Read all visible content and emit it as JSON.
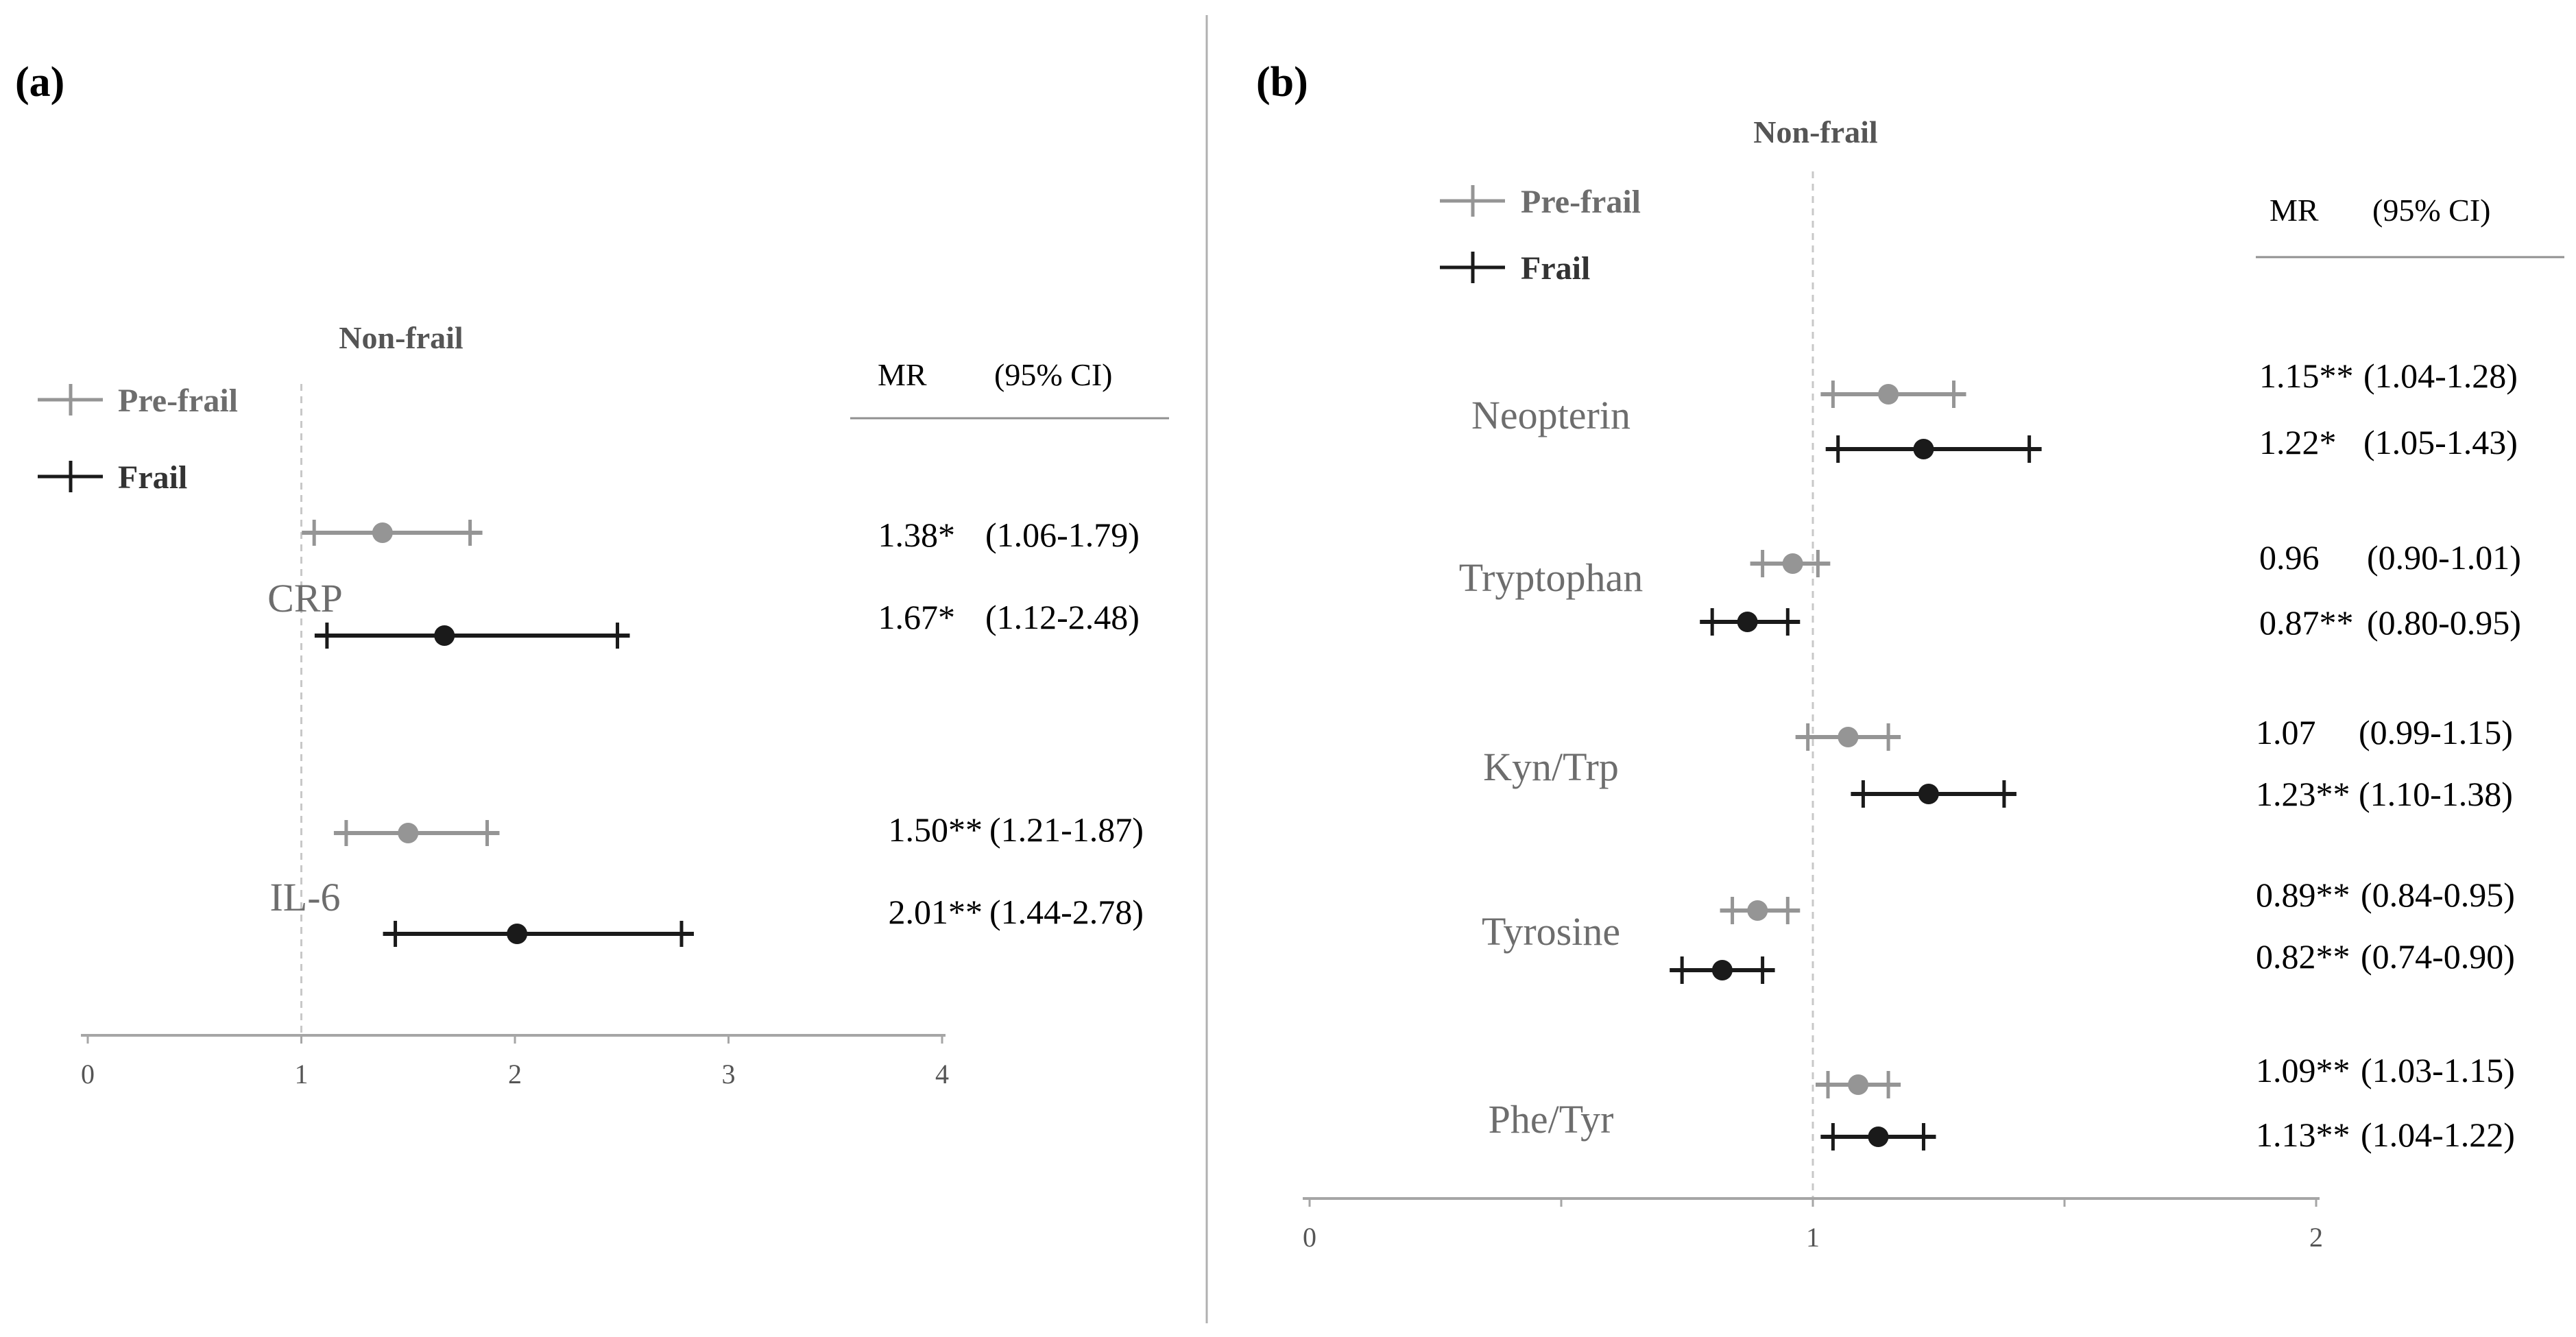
{
  "colors": {
    "prefrail": "#959595",
    "frail": "#1a1a1a",
    "ref_line": "#c8c8c8",
    "axis": "#a6a6a6",
    "divider": "#b0b0b0",
    "label_gray": "#6d6d6d"
  },
  "chart_data": [
    {
      "type": "forest",
      "panel": "(a)",
      "title": "Non-frail",
      "reference": 1,
      "xlim": [
        0,
        4
      ],
      "xticks": [
        "0",
        "1",
        "2",
        "3",
        "4"
      ],
      "header": {
        "mr": "MR",
        "ci": "(95% CI)"
      },
      "legend": [
        {
          "name": "Pre-frail",
          "key": "prefrail"
        },
        {
          "name": "Frail",
          "key": "frail"
        }
      ],
      "categories": [
        {
          "name": "CRP",
          "series": [
            {
              "group": "Pre-frail",
              "mr": 1.38,
              "lo": 1.06,
              "hi": 1.79,
              "mr_text": "1.38*",
              "ci_text": "(1.06-1.79)"
            },
            {
              "group": "Frail",
              "mr": 1.67,
              "lo": 1.12,
              "hi": 2.48,
              "mr_text": "1.67*",
              "ci_text": "(1.12-2.48)"
            }
          ]
        },
        {
          "name": "IL-6",
          "series": [
            {
              "group": "Pre-frail",
              "mr": 1.5,
              "lo": 1.21,
              "hi": 1.87,
              "mr_text": "1.50**",
              "ci_text": "(1.21-1.87)"
            },
            {
              "group": "Frail",
              "mr": 2.01,
              "lo": 1.44,
              "hi": 2.78,
              "mr_text": "2.01**",
              "ci_text": "(1.44-2.78)"
            }
          ]
        }
      ]
    },
    {
      "type": "forest",
      "panel": "(b)",
      "title": "Non-frail",
      "reference": 1,
      "xlim": [
        0,
        2
      ],
      "xticks": [
        "0",
        "1",
        "2"
      ],
      "header": {
        "mr": "MR",
        "ci": "(95% CI)"
      },
      "legend": [
        {
          "name": "Pre-frail",
          "key": "prefrail"
        },
        {
          "name": "Frail",
          "key": "frail"
        }
      ],
      "categories": [
        {
          "name": "Neopterin",
          "series": [
            {
              "group": "Pre-frail",
              "mr": 1.15,
              "lo": 1.04,
              "hi": 1.28,
              "mr_text": "1.15**",
              "ci_text": "(1.04-1.28)"
            },
            {
              "group": "Frail",
              "mr": 1.22,
              "lo": 1.05,
              "hi": 1.43,
              "mr_text": "1.22*",
              "ci_text": "(1.05-1.43)"
            }
          ]
        },
        {
          "name": "Tryptophan",
          "series": [
            {
              "group": "Pre-frail",
              "mr": 0.96,
              "lo": 0.9,
              "hi": 1.01,
              "mr_text": "0.96",
              "ci_text": "(0.90-1.01)"
            },
            {
              "group": "Frail",
              "mr": 0.87,
              "lo": 0.8,
              "hi": 0.95,
              "mr_text": "0.87**",
              "ci_text": "(0.80-0.95)"
            }
          ]
        },
        {
          "name": "Kyn/Trp",
          "series": [
            {
              "group": "Pre-frail",
              "mr": 1.07,
              "lo": 0.99,
              "hi": 1.15,
              "mr_text": "1.07",
              "ci_text": "(0.99-1.15)"
            },
            {
              "group": "Frail",
              "mr": 1.23,
              "lo": 1.1,
              "hi": 1.38,
              "mr_text": "1.23**",
              "ci_text": "(1.10-1.38)"
            }
          ]
        },
        {
          "name": "Tyrosine",
          "series": [
            {
              "group": "Pre-frail",
              "mr": 0.89,
              "lo": 0.84,
              "hi": 0.95,
              "mr_text": "0.89**",
              "ci_text": "(0.84-0.95)"
            },
            {
              "group": "Frail",
              "mr": 0.82,
              "lo": 0.74,
              "hi": 0.9,
              "mr_text": "0.82**",
              "ci_text": "(0.74-0.90)"
            }
          ]
        },
        {
          "name": "Phe/Tyr",
          "series": [
            {
              "group": "Pre-frail",
              "mr": 1.09,
              "lo": 1.03,
              "hi": 1.15,
              "mr_text": "1.09**",
              "ci_text": "(1.03-1.15)"
            },
            {
              "group": "Frail",
              "mr": 1.13,
              "lo": 1.04,
              "hi": 1.22,
              "mr_text": "1.13**",
              "ci_text": "(1.04-1.22)"
            }
          ]
        }
      ]
    }
  ]
}
